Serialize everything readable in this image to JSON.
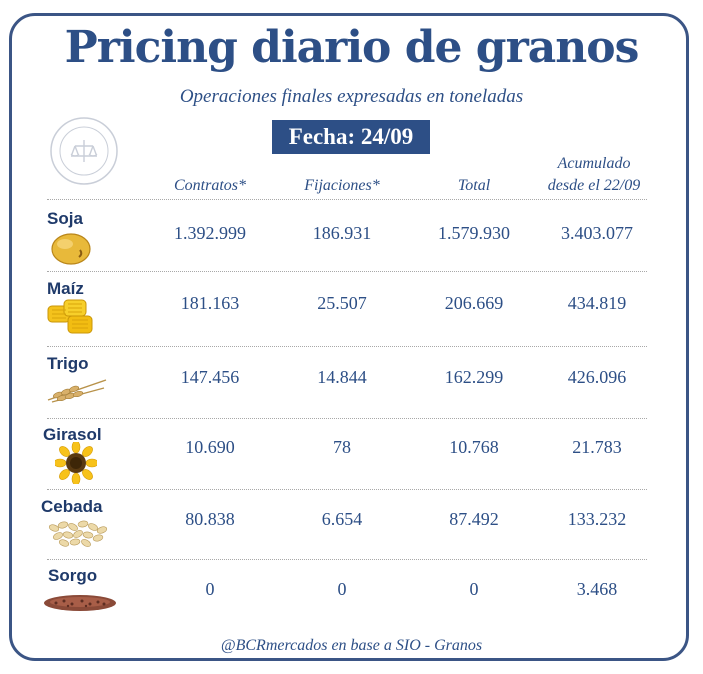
{
  "title": "Pricing diario de granos",
  "subtitle": "Operaciones finales expresadas en toneladas",
  "date_badge": "Fecha: 24/09",
  "columns": {
    "contratos": "Contratos*",
    "fijaciones": "Fijaciones*",
    "total": "Total",
    "acumulado_line1": "Acumulado",
    "acumulado_line2": "desde el 22/09"
  },
  "rows": [
    {
      "crop": "Soja",
      "icon": "soybean-icon",
      "contratos": "1.392.999",
      "fijaciones": "186.931",
      "total": "1.579.930",
      "acumulado": "3.403.077"
    },
    {
      "crop": "Maíz",
      "icon": "corn-icon",
      "contratos": "181.163",
      "fijaciones": "25.507",
      "total": "206.669",
      "acumulado": "434.819"
    },
    {
      "crop": "Trigo",
      "icon": "wheat-icon",
      "contratos": "147.456",
      "fijaciones": "14.844",
      "total": "162.299",
      "acumulado": "426.096"
    },
    {
      "crop": "Girasol",
      "icon": "sunflower-icon",
      "contratos": "10.690",
      "fijaciones": "78",
      "total": "10.768",
      "acumulado": "21.783"
    },
    {
      "crop": "Cebada",
      "icon": "barley-icon",
      "contratos": "80.838",
      "fijaciones": "6.654",
      "total": "87.492",
      "acumulado": "133.232"
    },
    {
      "crop": "Sorgo",
      "icon": "sorghum-icon",
      "contratos": "0",
      "fijaciones": "0",
      "total": "0",
      "acumulado": "3.468"
    }
  ],
  "footer": "@BCRmercados en base a SIO - Granos",
  "colors": {
    "brand": "#2d4f86",
    "border": "#3b5585"
  }
}
